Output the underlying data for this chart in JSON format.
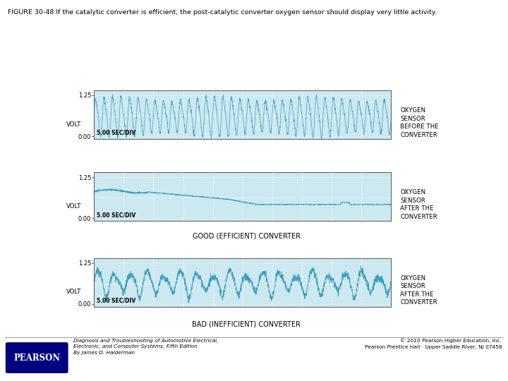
{
  "title": "FIGURE 30-48 If the catalytic converter is efficient, the post-catalytic converter oxygen sensor should display very little activity.",
  "bg_color": "#ffffff",
  "plot_bg_color": "#cce8f0",
  "line_color": "#3399bb",
  "grid_color": "#ffffff",
  "panel1_label_lines": [
    "OXYGEN",
    "SENSOR",
    "BEFORE THE",
    "CONVERTER"
  ],
  "panel2_label_lines": [
    "OXYGEN",
    "SENSOR",
    "AFTER THE",
    "CONVERTER"
  ],
  "panel3_label_lines": [
    "OXYGEN",
    "SENSOR",
    "AFTER THE",
    "CONVERTER"
  ],
  "caption1": "GOOD (EFFICIENT) CONVERTER",
  "caption2": "BAD (INEFFICIENT) CONVERTER",
  "volt_label": "VOLT",
  "sec_div_label": "5.00 SEC/DIV",
  "footer_left_lines": [
    "Diagnosis and Troubleshooting of Automotive Electrical,",
    "Electronic, and Computer Systems, Fifth Edition",
    "By James D. Halderman"
  ],
  "footer_right_lines": [
    "© 2010 Pearson Higher Education, Inc.",
    "Pearson Prentice Hall · Upper Saddle River, NJ 07458"
  ],
  "pearson_text": "PEARSON"
}
